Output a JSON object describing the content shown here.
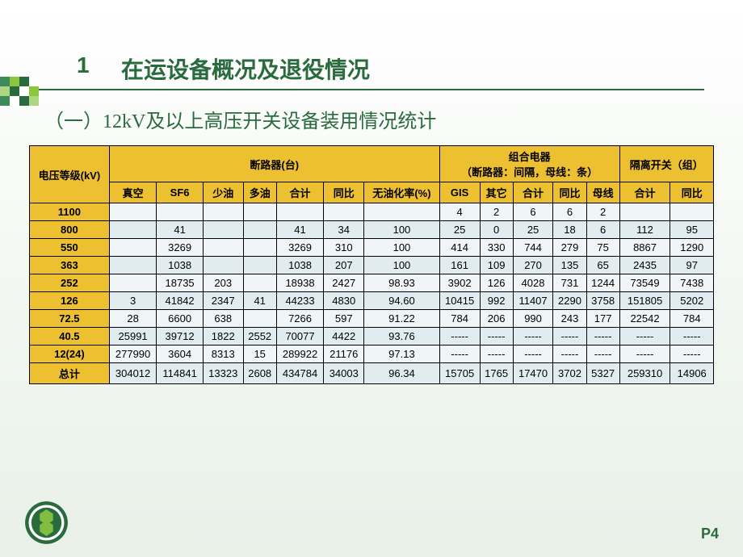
{
  "heading": {
    "number": "1",
    "text": "在运设备概况及退役情况"
  },
  "subheading": "（一）12kV及以上高压开关设备装用情况统计",
  "page_number": "P4",
  "decoration_colors": [
    "#3d8a5a",
    "#8cc63f",
    "#2a6b3d",
    "#ffffff",
    "#aed581",
    "#2a6b3d",
    "#ffffff",
    "#8cc63f",
    "#3d8a5a",
    "#ffffff",
    "#2a6b3d",
    "#aed581"
  ],
  "table": {
    "header": {
      "voltage_group": "电压等级(kV)",
      "breaker_group": "断路器(台)",
      "combined_group1": "组合电器",
      "combined_group2": "（断路器：间隔，母线：条）",
      "isolator_group": "隔离开关（组）",
      "cols": [
        "真空",
        "SF6",
        "少油",
        "多油",
        "合计",
        "同比",
        "无油化率(%)",
        "GIS",
        "其它",
        "合计",
        "同比",
        "母线",
        "合计",
        "同比"
      ]
    },
    "rows": [
      {
        "label": "1100",
        "cells": [
          "",
          "",
          "",
          "",
          "",
          "",
          "",
          "4",
          "2",
          "6",
          "6",
          "2",
          "",
          ""
        ]
      },
      {
        "label": "800",
        "cells": [
          "",
          "41",
          "",
          "",
          "41",
          "34",
          "100",
          "25",
          "0",
          "25",
          "18",
          "6",
          "112",
          "95"
        ]
      },
      {
        "label": "550",
        "cells": [
          "",
          "3269",
          "",
          "",
          "3269",
          "310",
          "100",
          "414",
          "330",
          "744",
          "279",
          "75",
          "8867",
          "1290"
        ]
      },
      {
        "label": "363",
        "cells": [
          "",
          "1038",
          "",
          "",
          "1038",
          "207",
          "100",
          "161",
          "109",
          "270",
          "135",
          "65",
          "2435",
          "97"
        ]
      },
      {
        "label": "252",
        "cells": [
          "",
          "18735",
          "203",
          "",
          "18938",
          "2427",
          "98.93",
          "3902",
          "126",
          "4028",
          "731",
          "1244",
          "73549",
          "7438"
        ]
      },
      {
        "label": "126",
        "cells": [
          "3",
          "41842",
          "2347",
          "41",
          "44233",
          "4830",
          "94.60",
          "10415",
          "992",
          "11407",
          "2290",
          "3758",
          "151805",
          "5202"
        ]
      },
      {
        "label": "72.5",
        "cells": [
          "28",
          "6600",
          "638",
          "",
          "7266",
          "597",
          "91.22",
          "784",
          "206",
          "990",
          "243",
          "177",
          "22542",
          "784"
        ]
      },
      {
        "label": "40.5",
        "cells": [
          "25991",
          "39712",
          "1822",
          "2552",
          "70077",
          "4422",
          "93.76",
          "-----",
          "-----",
          "-----",
          "-----",
          "-----",
          "-----",
          "-----"
        ]
      },
      {
        "label": "12(24)",
        "cells": [
          "277990",
          "3604",
          "8313",
          "15",
          "289922",
          "21176",
          "97.13",
          "-----",
          "-----",
          "-----",
          "-----",
          "-----",
          "-----",
          "-----"
        ]
      },
      {
        "label": "总计",
        "cells": [
          "304012",
          "114841",
          "13323",
          "2608",
          "434784",
          "34003",
          "96.34",
          "15705",
          "1765",
          "17470",
          "3702",
          "5327",
          "259310",
          "14906"
        ]
      }
    ]
  }
}
